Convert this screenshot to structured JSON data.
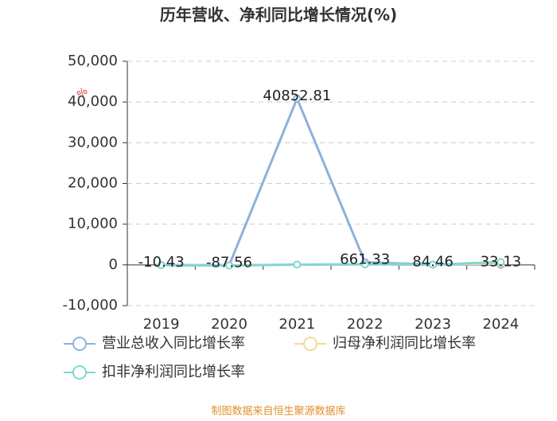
{
  "chart_data": {
    "type": "line",
    "title": "历年营收、净利同比增长情况(%)",
    "y_unit": "%",
    "source": "制图数据来自恒生聚源数据库",
    "categories": [
      "2019",
      "2020",
      "2021",
      "2022",
      "2023",
      "2024"
    ],
    "series": [
      {
        "name": "营业总收入同比增长率",
        "color": "#8fb0dc",
        "values": [
          -10.43,
          -87.56,
          40852.81,
          661.33,
          84.46,
          33.13
        ],
        "labels": true
      },
      {
        "name": "归母净利润同比增长率",
        "color": "#f5d89a",
        "values": [
          -60,
          -120,
          80,
          150,
          60,
          300
        ]
      },
      {
        "name": "扣非净利润同比增长率",
        "color": "#7fd8d0",
        "values": [
          -80,
          -150,
          60,
          120,
          50,
          700
        ]
      }
    ],
    "ylim": [
      -10000,
      50000
    ],
    "yticks": [
      {
        "value": -10000,
        "label": "-10,000"
      },
      0,
      {
        "value": 10000,
        "label": "10,000"
      },
      {
        "value": 20000,
        "label": "20,000"
      },
      {
        "value": 30000,
        "label": "30,000"
      },
      {
        "value": 40000,
        "label": "40,000"
      },
      {
        "value": 50000,
        "label": "50,000"
      }
    ],
    "grid": true
  }
}
